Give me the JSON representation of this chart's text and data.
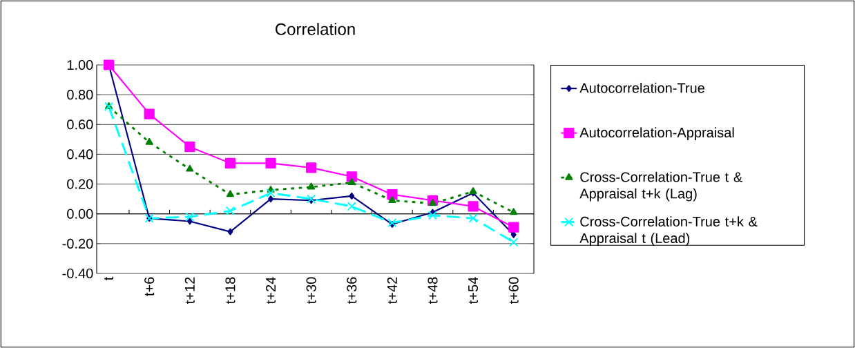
{
  "chart_data": {
    "type": "line",
    "title": "Correlation",
    "categories": [
      "t",
      "t+6",
      "t+12",
      "t+18",
      "t+24",
      "t+30",
      "t+36",
      "t+42",
      "t+48",
      "t+54",
      "t+60"
    ],
    "series": [
      {
        "name": "Autocorrelation-True",
        "color": "#000080",
        "marker": "diamond",
        "line_style": "solid",
        "values": [
          1.0,
          -0.03,
          -0.05,
          -0.12,
          0.1,
          0.09,
          0.12,
          -0.07,
          0.01,
          0.14,
          -0.14
        ]
      },
      {
        "name": "Autocorrelation-Appraisal",
        "color": "#ff00ff",
        "marker": "square",
        "line_style": "solid",
        "values": [
          1.0,
          0.67,
          0.45,
          0.34,
          0.34,
          0.31,
          0.25,
          0.13,
          0.09,
          0.05,
          -0.09
        ]
      },
      {
        "name": "Cross-Correlation-True t & Appraisal t+k (Lag)",
        "color": "#008000",
        "marker": "triangle",
        "line_style": "dotted",
        "values": [
          0.72,
          0.48,
          0.3,
          0.13,
          0.16,
          0.18,
          0.21,
          0.09,
          0.07,
          0.15,
          0.01
        ]
      },
      {
        "name": "Cross-Correlation-True t+k & Appraisal t (Lead)",
        "color": "#00ffff",
        "marker": "cross",
        "line_style": "dashed",
        "values": [
          0.72,
          -0.03,
          -0.02,
          0.02,
          0.14,
          0.1,
          0.05,
          -0.06,
          -0.01,
          -0.03,
          -0.19
        ]
      }
    ],
    "ylim": [
      -0.4,
      1.0
    ],
    "yticks": [
      {
        "value": -0.4,
        "label": "-0.40"
      },
      {
        "value": -0.2,
        "label": "-0.20"
      },
      {
        "value": 0,
        "label": "0.00"
      },
      {
        "value": 0.2,
        "label": "0.20"
      },
      {
        "value": 0.4,
        "label": "0.40"
      },
      {
        "value": 0.6,
        "label": "0.60"
      },
      {
        "value": 0.8,
        "label": "0.80"
      },
      {
        "value": 1.0,
        "label": "1.00"
      }
    ],
    "grid": "y",
    "legend": "right"
  }
}
